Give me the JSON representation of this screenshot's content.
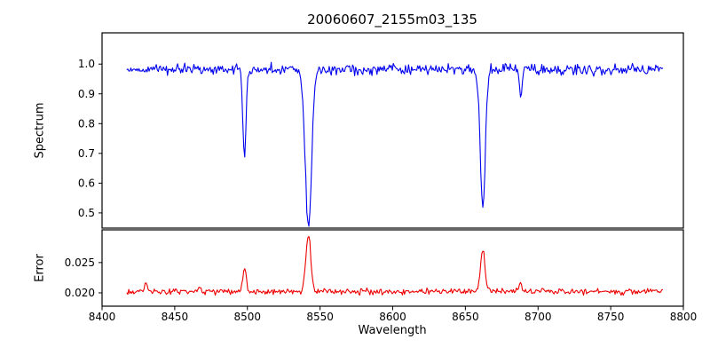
{
  "chart_data": {
    "type": "line",
    "title": "20060607_2155m03_135",
    "xlabel": "Wavelength",
    "xlim": [
      8400,
      8800
    ],
    "x_data_range": [
      8417,
      8786
    ],
    "sample_step": 0.7,
    "x_ticks": [
      {
        "value": 8400,
        "label": "8400"
      },
      {
        "value": 8450,
        "label": "8450"
      },
      {
        "value": 8500,
        "label": "8500"
      },
      {
        "value": 8550,
        "label": "8550"
      },
      {
        "value": 8600,
        "label": "8600"
      },
      {
        "value": 8650,
        "label": "8650"
      },
      {
        "value": 8700,
        "label": "8700"
      },
      {
        "value": 8750,
        "label": "8750"
      },
      {
        "value": 8800,
        "label": "8800"
      }
    ],
    "panels": [
      {
        "name": "spectrum",
        "ylabel": "Spectrum",
        "color": "#0000ee",
        "ylim": [
          0.449,
          1.105
        ],
        "y_ticks": [
          {
            "value": 1.0,
            "label": "1.0"
          },
          {
            "value": 0.9,
            "label": "0.9"
          },
          {
            "value": 0.8,
            "label": "0.8"
          },
          {
            "value": 0.7,
            "label": "0.7"
          },
          {
            "value": 0.6,
            "label": "0.6"
          },
          {
            "value": 0.5,
            "label": "0.5"
          }
        ],
        "continuum": 0.982,
        "noise_amplitude": 0.018,
        "features": [
          {
            "center": 8498,
            "amplitude": -0.3,
            "sigma": 1.1
          },
          {
            "center": 8542,
            "amplitude": -0.53,
            "sigma": 2.2
          },
          {
            "center": 8662,
            "amplitude": -0.47,
            "sigma": 1.7
          },
          {
            "center": 8688,
            "amplitude": -0.09,
            "sigma": 1.0
          }
        ]
      },
      {
        "name": "error",
        "ylabel": "Error",
        "color": "#ee0000",
        "ylim": [
          0.0178,
          0.0304
        ],
        "y_ticks": [
          {
            "value": 0.025,
            "label": "0.025"
          },
          {
            "value": 0.02,
            "label": "0.020"
          }
        ],
        "continuum": 0.0202,
        "noise_amplitude": 0.0005,
        "features": [
          {
            "center": 8430,
            "amplitude": 0.0015,
            "sigma": 1.0
          },
          {
            "center": 8467,
            "amplitude": 0.0007,
            "sigma": 1.0
          },
          {
            "center": 8498,
            "amplitude": 0.0036,
            "sigma": 1.3
          },
          {
            "center": 8542,
            "amplitude": 0.0093,
            "sigma": 1.7
          },
          {
            "center": 8662,
            "amplitude": 0.007,
            "sigma": 1.5
          },
          {
            "center": 8688,
            "amplitude": 0.0013,
            "sigma": 1.0
          }
        ]
      }
    ]
  }
}
